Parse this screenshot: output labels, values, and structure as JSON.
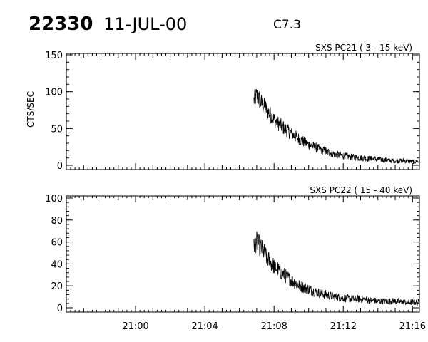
{
  "header": {
    "event_number": "22330",
    "date": "11-JUL-00",
    "flare_class": "C7.3"
  },
  "chart_data": [
    {
      "type": "line",
      "title": "SXS PC21  (  3 - 15 keV)",
      "ylabel": "CTS/SEC",
      "xlabel": "",
      "xlim": [
        "20:56:00",
        "21:16:24"
      ],
      "ylim": [
        0,
        150
      ],
      "yticks": [
        0,
        50,
        100,
        150
      ],
      "xticks": [
        "21:00",
        "21:04",
        "21:08",
        "21:12",
        "21:16"
      ],
      "grid": false,
      "legend": "none",
      "series": [
        {
          "time": [
            "21:06:50",
            "21:07:00",
            "21:07:15",
            "21:07:30",
            "21:07:45",
            "21:08:00",
            "21:08:30",
            "21:09:00",
            "21:09:30",
            "21:10:00",
            "21:10:30",
            "21:11:00",
            "21:11:30",
            "21:12:00",
            "21:12:30",
            "21:13:00",
            "21:13:30",
            "21:14:00",
            "21:14:30",
            "21:15:00",
            "21:15:30",
            "21:16:00",
            "21:16:24"
          ],
          "values": [
            88,
            95,
            85,
            78,
            70,
            62,
            52,
            43,
            35,
            28,
            23,
            19,
            15,
            13,
            11,
            10,
            9,
            8,
            7,
            6,
            6,
            5,
            5
          ]
        }
      ]
    },
    {
      "type": "line",
      "title": "SXS PC22  ( 15 - 40 keV)",
      "ylabel": "",
      "xlabel": "",
      "xlim": [
        "20:56:00",
        "21:16:24"
      ],
      "ylim": [
        0,
        100
      ],
      "yticks": [
        0,
        20,
        40,
        60,
        80,
        100
      ],
      "xticks": [
        "21:00",
        "21:04",
        "21:08",
        "21:12",
        "21:16"
      ],
      "grid": false,
      "legend": "none",
      "series": [
        {
          "time": [
            "21:06:50",
            "21:07:00",
            "21:07:15",
            "21:07:30",
            "21:07:45",
            "21:08:00",
            "21:08:30",
            "21:09:00",
            "21:09:30",
            "21:10:00",
            "21:10:30",
            "21:11:00",
            "21:11:30",
            "21:12:00",
            "21:12:30",
            "21:13:00",
            "21:13:30",
            "21:14:00",
            "21:14:30",
            "21:15:00",
            "21:15:30",
            "21:16:00",
            "21:16:24"
          ],
          "values": [
            58,
            60,
            55,
            48,
            42,
            38,
            31,
            25,
            20,
            17,
            14,
            12,
            10,
            9,
            8,
            8,
            7,
            6,
            6,
            6,
            5,
            5,
            5
          ]
        }
      ]
    }
  ]
}
